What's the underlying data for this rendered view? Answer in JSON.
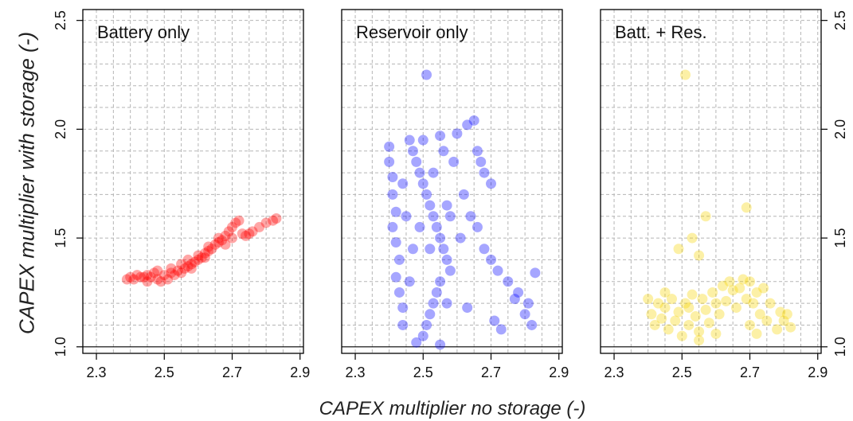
{
  "axis_labels": {
    "ylabel": "CAPEX multiplier with storage (-)",
    "xlabel": "CAPEX multiplier no storage (-)"
  },
  "chart_data": [
    {
      "type": "scatter",
      "title": "Battery only",
      "color": "#ff0000",
      "xlim": [
        2.26,
        2.91
      ],
      "ylim": [
        0.97,
        2.55
      ],
      "x_ticks": [
        "2.3",
        "2.5",
        "2.7",
        "2.9"
      ],
      "y_ticks": [
        "1.0",
        "1.5",
        "2.0",
        "2.5"
      ],
      "y_ticks_side": "left",
      "grid": true,
      "reference_line_y": 1.0,
      "points": [
        [
          2.39,
          1.31
        ],
        [
          2.4,
          1.32
        ],
        [
          2.41,
          1.31
        ],
        [
          2.42,
          1.33
        ],
        [
          2.43,
          1.32
        ],
        [
          2.44,
          1.32
        ],
        [
          2.45,
          1.33
        ],
        [
          2.46,
          1.32
        ],
        [
          2.47,
          1.34
        ],
        [
          2.48,
          1.31
        ],
        [
          2.49,
          1.3
        ],
        [
          2.5,
          1.33
        ],
        [
          2.51,
          1.31
        ],
        [
          2.52,
          1.34
        ],
        [
          2.53,
          1.33
        ],
        [
          2.54,
          1.35
        ],
        [
          2.55,
          1.34
        ],
        [
          2.56,
          1.36
        ],
        [
          2.57,
          1.37
        ],
        [
          2.58,
          1.38
        ],
        [
          2.59,
          1.39
        ],
        [
          2.6,
          1.4
        ],
        [
          2.61,
          1.41
        ],
        [
          2.62,
          1.43
        ],
        [
          2.63,
          1.44
        ],
        [
          2.64,
          1.45
        ],
        [
          2.65,
          1.47
        ],
        [
          2.66,
          1.48
        ],
        [
          2.67,
          1.49
        ],
        [
          2.68,
          1.51
        ],
        [
          2.69,
          1.53
        ],
        [
          2.7,
          1.55
        ],
        [
          2.71,
          1.57
        ],
        [
          2.72,
          1.58
        ],
        [
          2.73,
          1.52
        ],
        [
          2.74,
          1.51
        ],
        [
          2.75,
          1.52
        ],
        [
          2.76,
          1.53
        ],
        [
          2.78,
          1.55
        ],
        [
          2.8,
          1.57
        ],
        [
          2.82,
          1.58
        ],
        [
          2.83,
          1.59
        ],
        [
          2.55,
          1.38
        ],
        [
          2.57,
          1.4
        ],
        [
          2.6,
          1.42
        ],
        [
          2.62,
          1.41
        ],
        [
          2.63,
          1.46
        ],
        [
          2.66,
          1.5
        ],
        [
          2.68,
          1.47
        ],
        [
          2.7,
          1.5
        ],
        [
          2.52,
          1.36
        ],
        [
          2.48,
          1.35
        ],
        [
          2.45,
          1.3
        ],
        [
          2.58,
          1.36
        ]
      ]
    },
    {
      "type": "scatter",
      "title": "Reservoir only",
      "color": "#0000ff",
      "xlim": [
        2.26,
        2.91
      ],
      "ylim": [
        0.97,
        2.55
      ],
      "x_ticks": [
        "2.3",
        "2.5",
        "2.7",
        "2.9"
      ],
      "y_ticks": [],
      "grid": true,
      "reference_line_y": 1.0,
      "points": [
        [
          2.51,
          2.25
        ],
        [
          2.4,
          1.92
        ],
        [
          2.4,
          1.85
        ],
        [
          2.41,
          1.78
        ],
        [
          2.41,
          1.7
        ],
        [
          2.42,
          1.62
        ],
        [
          2.41,
          1.55
        ],
        [
          2.42,
          1.48
        ],
        [
          2.43,
          1.4
        ],
        [
          2.42,
          1.32
        ],
        [
          2.43,
          1.25
        ],
        [
          2.44,
          1.18
        ],
        [
          2.44,
          1.1
        ],
        [
          2.46,
          1.95
        ],
        [
          2.47,
          1.9
        ],
        [
          2.48,
          1.85
        ],
        [
          2.49,
          1.8
        ],
        [
          2.5,
          1.75
        ],
        [
          2.51,
          1.7
        ],
        [
          2.52,
          1.65
        ],
        [
          2.53,
          1.6
        ],
        [
          2.54,
          1.55
        ],
        [
          2.55,
          1.5
        ],
        [
          2.56,
          1.45
        ],
        [
          2.57,
          1.4
        ],
        [
          2.58,
          1.35
        ],
        [
          2.55,
          1.3
        ],
        [
          2.54,
          1.25
        ],
        [
          2.53,
          1.2
        ],
        [
          2.52,
          1.15
        ],
        [
          2.51,
          1.1
        ],
        [
          2.5,
          1.05
        ],
        [
          2.55,
          1.01
        ],
        [
          2.48,
          1.02
        ],
        [
          2.46,
          1.3
        ],
        [
          2.47,
          1.45
        ],
        [
          2.49,
          1.55
        ],
        [
          2.5,
          1.95
        ],
        [
          2.55,
          1.97
        ],
        [
          2.6,
          1.98
        ],
        [
          2.63,
          2.02
        ],
        [
          2.65,
          2.04
        ],
        [
          2.66,
          1.9
        ],
        [
          2.67,
          1.85
        ],
        [
          2.68,
          1.8
        ],
        [
          2.7,
          1.75
        ],
        [
          2.62,
          1.7
        ],
        [
          2.64,
          1.6
        ],
        [
          2.66,
          1.55
        ],
        [
          2.68,
          1.45
        ],
        [
          2.7,
          1.4
        ],
        [
          2.72,
          1.35
        ],
        [
          2.75,
          1.3
        ],
        [
          2.78,
          1.25
        ],
        [
          2.81,
          1.2
        ],
        [
          2.83,
          1.34
        ],
        [
          2.82,
          1.1
        ],
        [
          2.8,
          1.15
        ],
        [
          2.71,
          1.12
        ],
        [
          2.73,
          1.08
        ],
        [
          2.77,
          1.22
        ],
        [
          2.63,
          1.18
        ],
        [
          2.61,
          1.5
        ],
        [
          2.59,
          1.85
        ],
        [
          2.57,
          1.65
        ],
        [
          2.56,
          1.9
        ],
        [
          2.53,
          1.8
        ],
        [
          2.52,
          1.45
        ],
        [
          2.58,
          1.6
        ],
        [
          2.57,
          1.2
        ],
        [
          2.45,
          1.6
        ],
        [
          2.44,
          1.75
        ]
      ]
    },
    {
      "type": "scatter",
      "title": "Batt. + Res.",
      "color": "#f5d300",
      "xlim": [
        2.26,
        2.91
      ],
      "ylim": [
        0.97,
        2.55
      ],
      "x_ticks": [
        "2.3",
        "2.5",
        "2.7",
        "2.9"
      ],
      "y_ticks": [
        "1.0",
        "1.5",
        "2.0",
        "2.5"
      ],
      "y_ticks_side": "right",
      "grid": true,
      "reference_line_y": 1.0,
      "points": [
        [
          2.51,
          2.25
        ],
        [
          2.69,
          1.64
        ],
        [
          2.57,
          1.6
        ],
        [
          2.49,
          1.45
        ],
        [
          2.53,
          1.5
        ],
        [
          2.55,
          1.42
        ],
        [
          2.4,
          1.22
        ],
        [
          2.41,
          1.15
        ],
        [
          2.42,
          1.1
        ],
        [
          2.43,
          1.2
        ],
        [
          2.44,
          1.13
        ],
        [
          2.45,
          1.18
        ],
        [
          2.46,
          1.08
        ],
        [
          2.47,
          1.22
        ],
        [
          2.48,
          1.12
        ],
        [
          2.49,
          1.16
        ],
        [
          2.5,
          1.05
        ],
        [
          2.51,
          1.2
        ],
        [
          2.52,
          1.1
        ],
        [
          2.53,
          1.24
        ],
        [
          2.54,
          1.14
        ],
        [
          2.55,
          1.07
        ],
        [
          2.56,
          1.22
        ],
        [
          2.57,
          1.17
        ],
        [
          2.58,
          1.11
        ],
        [
          2.59,
          1.25
        ],
        [
          2.6,
          1.2
        ],
        [
          2.61,
          1.15
        ],
        [
          2.62,
          1.28
        ],
        [
          2.63,
          1.21
        ],
        [
          2.64,
          1.3
        ],
        [
          2.65,
          1.26
        ],
        [
          2.66,
          1.18
        ],
        [
          2.67,
          1.27
        ],
        [
          2.68,
          1.31
        ],
        [
          2.69,
          1.22
        ],
        [
          2.7,
          1.3
        ],
        [
          2.71,
          1.2
        ],
        [
          2.72,
          1.25
        ],
        [
          2.73,
          1.15
        ],
        [
          2.74,
          1.27
        ],
        [
          2.75,
          1.12
        ],
        [
          2.76,
          1.2
        ],
        [
          2.78,
          1.08
        ],
        [
          2.79,
          1.16
        ],
        [
          2.8,
          1.12
        ],
        [
          2.82,
          1.09
        ],
        [
          2.81,
          1.15
        ],
        [
          2.72,
          1.06
        ],
        [
          2.7,
          1.1
        ],
        [
          2.55,
          1.03
        ],
        [
          2.6,
          1.06
        ],
        [
          2.45,
          1.25
        ],
        [
          2.52,
          1.18
        ]
      ]
    }
  ]
}
